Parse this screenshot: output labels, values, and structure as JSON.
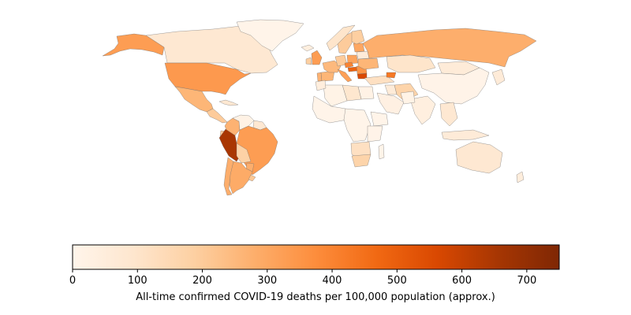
{
  "colorbar": {
    "label": "All-time confirmed COVID-19 deaths per 100,000 population (approx.)",
    "vmin": 0,
    "vmax": 750,
    "ticks": [
      0,
      100,
      200,
      300,
      400,
      500,
      600,
      700
    ],
    "tick_labels": [
      "0",
      "100",
      "200",
      "300",
      "400",
      "500",
      "600",
      "700"
    ],
    "colormap": [
      "#fff5eb",
      "#fee6ce",
      "#fdd0a2",
      "#fdae6b",
      "#fd8d3c",
      "#f16913",
      "#d94801",
      "#a63603",
      "#7f2704"
    ]
  },
  "chart_data": {
    "type": "choropleth",
    "value_label": "All-time confirmed COVID-19 deaths per 100,000 population (approx.)",
    "range": [
      0,
      750
    ],
    "regions": [
      {
        "name": "Canada",
        "value": 80
      },
      {
        "name": "Greenland",
        "value": 5
      },
      {
        "name": "Alaska (USA)",
        "value": 330
      },
      {
        "name": "United States",
        "value": 340
      },
      {
        "name": "Mexico",
        "value": 260
      },
      {
        "name": "Central America",
        "value": 200
      },
      {
        "name": "Cuba",
        "value": 80
      },
      {
        "name": "Colombia",
        "value": 270
      },
      {
        "name": "Venezuela",
        "value": 20
      },
      {
        "name": "Guianas",
        "value": 80
      },
      {
        "name": "Ecuador",
        "value": 200
      },
      {
        "name": "Peru",
        "value": 650
      },
      {
        "name": "Brazil",
        "value": 330
      },
      {
        "name": "Bolivia",
        "value": 180
      },
      {
        "name": "Paraguay",
        "value": 280
      },
      {
        "name": "Chile",
        "value": 280
      },
      {
        "name": "Argentina",
        "value": 290
      },
      {
        "name": "Uruguay",
        "value": 210
      },
      {
        "name": "Iceland",
        "value": 40
      },
      {
        "name": "United Kingdom",
        "value": 330
      },
      {
        "name": "Ireland",
        "value": 190
      },
      {
        "name": "Portugal",
        "value": 270
      },
      {
        "name": "Spain",
        "value": 260
      },
      {
        "name": "France",
        "value": 250
      },
      {
        "name": "Italy",
        "value": 320
      },
      {
        "name": "Germany",
        "value": 200
      },
      {
        "name": "Poland",
        "value": 310
      },
      {
        "name": "Czechia",
        "value": 400
      },
      {
        "name": "Hungary",
        "value": 490
      },
      {
        "name": "Bulgaria",
        "value": 560
      },
      {
        "name": "Romania",
        "value": 350
      },
      {
        "name": "Ukraine",
        "value": 260
      },
      {
        "name": "Belarus",
        "value": 60
      },
      {
        "name": "Baltic states",
        "value": 300
      },
      {
        "name": "Norway",
        "value": 100
      },
      {
        "name": "Sweden",
        "value": 200
      },
      {
        "name": "Finland",
        "value": 190
      },
      {
        "name": "Russia",
        "value": 280
      },
      {
        "name": "Turkey",
        "value": 120
      },
      {
        "name": "Georgia",
        "value": 430
      },
      {
        "name": "Kazakhstan",
        "value": 100
      },
      {
        "name": "Mongolia",
        "value": 60
      },
      {
        "name": "China",
        "value": 10
      },
      {
        "name": "Iran",
        "value": 170
      },
      {
        "name": "Iraq",
        "value": 60
      },
      {
        "name": "Saudi Arabia",
        "value": 30
      },
      {
        "name": "Egypt",
        "value": 20
      },
      {
        "name": "Libya",
        "value": 90
      },
      {
        "name": "Algeria",
        "value": 15
      },
      {
        "name": "Morocco",
        "value": 45
      },
      {
        "name": "West Africa",
        "value": 5
      },
      {
        "name": "Central Africa",
        "value": 5
      },
      {
        "name": "Ethiopia",
        "value": 5
      },
      {
        "name": "East Africa",
        "value": 10
      },
      {
        "name": "Southern Africa",
        "value": 120
      },
      {
        "name": "South Africa",
        "value": 170
      },
      {
        "name": "Madagascar",
        "value": 5
      },
      {
        "name": "India",
        "value": 40
      },
      {
        "name": "Pakistan",
        "value": 15
      },
      {
        "name": "Southeast Asia",
        "value": 80
      },
      {
        "name": "Indonesia",
        "value": 60
      },
      {
        "name": "Japan",
        "value": 60
      },
      {
        "name": "Australia",
        "value": 80
      },
      {
        "name": "New Zealand",
        "value": 50
      }
    ]
  }
}
